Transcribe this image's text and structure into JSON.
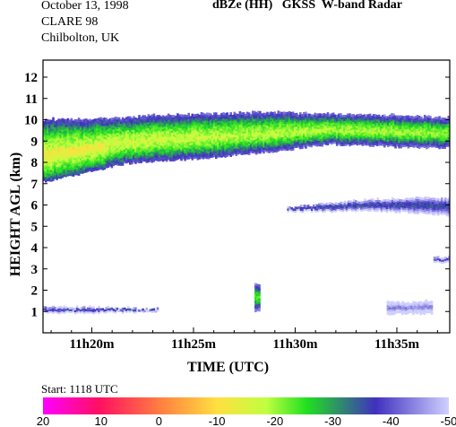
{
  "header": {
    "date": "October 13, 1998",
    "campaign": "CLARE 98",
    "location": "Chilbolton, UK",
    "title": "dBZe (HH)   GKSS  W-band Radar"
  },
  "chart_data": {
    "type": "heatmap",
    "title": "dBZe (HH)   GKSS  W-band Radar",
    "xlabel": "TIME (UTC)",
    "ylabel": "HEIGHT AGL (km)",
    "xlim": [
      "11h17.6m",
      "11h37.6m"
    ],
    "ylim": [
      0,
      12.8
    ],
    "x_ticks": [
      "11h20m",
      "11h25m",
      "11h30m",
      "11h35m"
    ],
    "y_ticks": [
      1,
      2,
      3,
      4,
      5,
      6,
      7,
      8,
      9,
      10,
      11,
      12
    ],
    "start_label": "Start: 1118 UTC",
    "colorbar": {
      "ticks": [
        "20",
        "10",
        "0",
        "-10",
        "-20",
        "-30",
        "-40",
        "-50"
      ],
      "stops": [
        "#ff00ff",
        "#ff1060",
        "#ff8040",
        "#ffe040",
        "#c0ff40",
        "#20e020",
        "#4030c0",
        "#d0d0ff"
      ]
    },
    "layers": [
      {
        "name": "upper cloud",
        "t_start": 17.6,
        "t_end": 37.6,
        "top_km": [
          9.98,
          10.0,
          10.05,
          10.2,
          10.25,
          10.3,
          10.3,
          10.25,
          10.2,
          10.15,
          10.05
        ],
        "base_km": [
          7.1,
          7.5,
          7.95,
          8.1,
          8.2,
          8.4,
          8.6,
          8.85,
          8.8,
          8.7,
          8.7
        ],
        "peak_dbze": -18
      },
      {
        "name": "mid cloud",
        "t_start": 29.6,
        "t_end": 37.6,
        "top_km": [
          5.85,
          6.05,
          6.2,
          6.3,
          6.3
        ],
        "base_km": [
          5.7,
          5.7,
          5.75,
          5.65,
          5.5
        ],
        "peak_dbze": -32
      },
      {
        "name": "small echo",
        "t_start": 36.8,
        "t_end": 37.6,
        "top_km": [
          3.5,
          3.5
        ],
        "base_km": [
          3.3,
          3.3
        ],
        "peak_dbze": -36
      },
      {
        "name": "low layer left",
        "t_start": 17.6,
        "t_end": 23.2,
        "top_km": [
          1.15,
          1.15,
          1.1
        ],
        "base_km": [
          0.95,
          0.95,
          1.0
        ],
        "peak_dbze": -33
      },
      {
        "name": "low layer right",
        "t_start": 34.5,
        "t_end": 36.7,
        "top_km": [
          1.4,
          1.45
        ],
        "base_km": [
          0.9,
          0.9
        ],
        "peak_dbze": -42
      },
      {
        "name": "vertical streak",
        "t_start": 28.0,
        "t_end": 28.2,
        "top_km": [
          2.3,
          2.3
        ],
        "base_km": [
          1.0,
          1.0
        ],
        "peak_dbze": -22
      }
    ]
  }
}
